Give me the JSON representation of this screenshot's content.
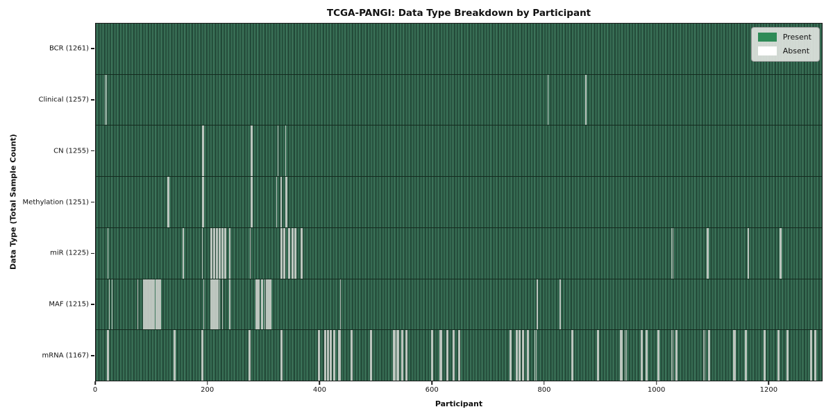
{
  "title": "TCGA-PANGI: Data Type Breakdown by Participant",
  "x_axis_label": "Participant",
  "y_axis_label": "Data Type (Total Sample Count)",
  "legend": {
    "present_label": "Present",
    "absent_label": "Absent",
    "present_color": "#2e8b57",
    "absent_color": "#ffffff"
  },
  "colors": {
    "present_fill": "#2e8b57",
    "bar_edge_dark": "#1f4232",
    "absent_line": "#c9cec9",
    "axes_spine": "#1c1c1c",
    "background": "#ffffff"
  },
  "chart_data": {
    "type": "heatmap",
    "title": "TCGA-PANGI: Data Type Breakdown by Participant",
    "xlabel": "Participant",
    "ylabel": "Data Type (Total Sample Count)",
    "legend_position": "upper right",
    "x_axis": {
      "ticks": [
        0,
        200,
        400,
        600,
        800,
        1000,
        1200
      ],
      "max": 1296
    },
    "rows": [
      {
        "data_type": "BCR",
        "total": 1261,
        "label": "BCR (1261)",
        "absent": []
      },
      {
        "data_type": "Clinical",
        "total": 1257,
        "label": "Clinical (1257)",
        "absent": [
          16,
          18,
          806,
          874
        ]
      },
      {
        "data_type": "CN",
        "total": 1255,
        "label": "CN (1255)",
        "absent": [
          189,
          191,
          276,
          278,
          324,
          338
        ]
      },
      {
        "data_type": "Methylation",
        "total": 1251,
        "label": "Methylation (1251)",
        "absent": [
          127,
          129,
          189,
          191,
          276,
          278,
          322,
          330,
          338,
          340
        ]
      },
      {
        "data_type": "miR",
        "total": 1225,
        "label": "miR (1225)",
        "absent": [
          21,
          155,
          189,
          204,
          206,
          209,
          211,
          214,
          216,
          219,
          221,
          224,
          226,
          229,
          231,
          238,
          275,
          330,
          332,
          335,
          337,
          343,
          345,
          349,
          351,
          354,
          356,
          365,
          367,
          1027,
          1029,
          1090,
          1092,
          1164,
          1220,
          1222
        ]
      },
      {
        "data_type": "MAF",
        "total": 1215,
        "label": "MAF (1215)",
        "absent": [
          23,
          28,
          74,
          84,
          86,
          88,
          90,
          92,
          94,
          96,
          98,
          100,
          102,
          104,
          106,
          108,
          110,
          112,
          114,
          192,
          204,
          206,
          208,
          210,
          212,
          214,
          216,
          218,
          220,
          225,
          238,
          285,
          287,
          289,
          291,
          295,
          297,
          301,
          303,
          305,
          307,
          309,
          311,
          436,
          787,
          828
        ]
      },
      {
        "data_type": "mRNA",
        "total": 1167,
        "label": "mRNA (1167)",
        "absent": [
          20,
          22,
          139,
          141,
          188,
          190,
          272,
          274,
          330,
          332,
          396,
          398,
          408,
          410,
          413,
          415,
          418,
          420,
          424,
          426,
          433,
          435,
          455,
          457,
          489,
          491,
          530,
          532,
          534,
          537,
          539,
          545,
          547,
          553,
          555,
          598,
          600,
          613,
          615,
          617,
          626,
          628,
          637,
          639,
          647,
          649,
          738,
          740,
          750,
          752,
          755,
          757,
          761,
          763,
          769,
          771,
          783,
          785,
          849,
          851,
          895,
          897,
          936,
          938,
          944,
          946,
          973,
          975,
          981,
          983,
          1002,
          1004,
          1027,
          1029,
          1035,
          1037,
          1084,
          1086,
          1093,
          1095,
          1138,
          1140,
          1158,
          1160,
          1192,
          1194,
          1217,
          1219,
          1233,
          1235,
          1275,
          1277,
          1282,
          1284
        ]
      }
    ]
  }
}
